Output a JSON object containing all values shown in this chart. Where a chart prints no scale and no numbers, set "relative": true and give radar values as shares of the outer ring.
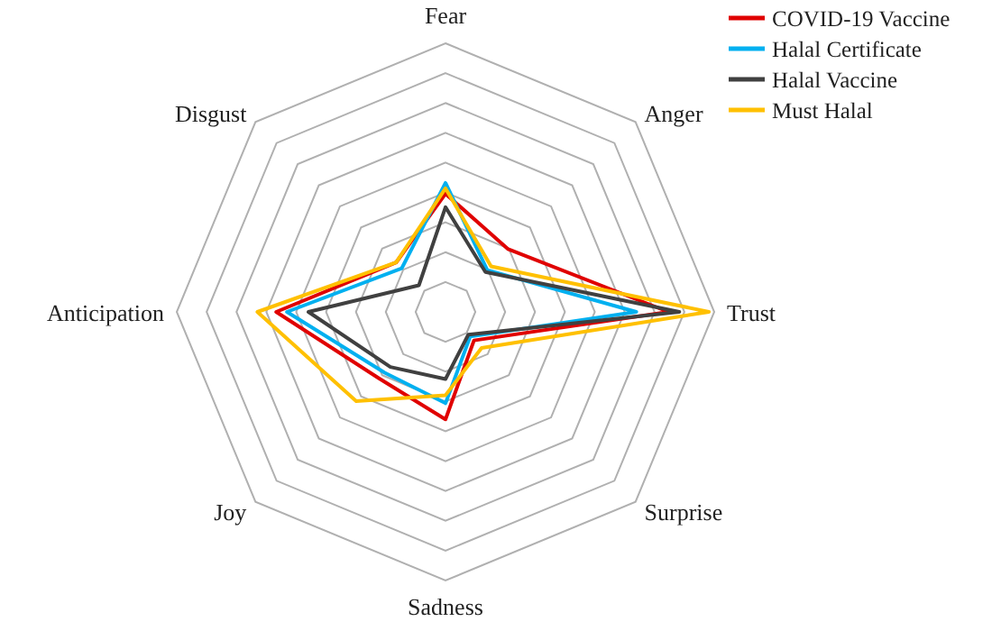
{
  "chart_data": {
    "type": "radar",
    "relative": true,
    "categories": [
      "Fear",
      "Anger",
      "Trust",
      "Surprise",
      "Sadness",
      "Joy",
      "Anticipation",
      "Disgust"
    ],
    "series": [
      {
        "name": "COVID-19 Vaccine",
        "color": "#e00000",
        "values": [
          0.44,
          0.33,
          0.83,
          0.15,
          0.4,
          0.35,
          0.63,
          0.26
        ]
      },
      {
        "name": "Halal Certificate",
        "color": "#00b0f0",
        "values": [
          0.48,
          0.22,
          0.71,
          0.13,
          0.34,
          0.32,
          0.59,
          0.23
        ]
      },
      {
        "name": "Halal Vaccine",
        "color": "#404040",
        "values": [
          0.39,
          0.21,
          0.87,
          0.12,
          0.25,
          0.29,
          0.51,
          0.14
        ]
      },
      {
        "name": "Must Halal",
        "color": "#ffc000",
        "values": [
          0.46,
          0.24,
          0.98,
          0.19,
          0.31,
          0.47,
          0.7,
          0.26
        ]
      }
    ],
    "legend": "top right"
  }
}
